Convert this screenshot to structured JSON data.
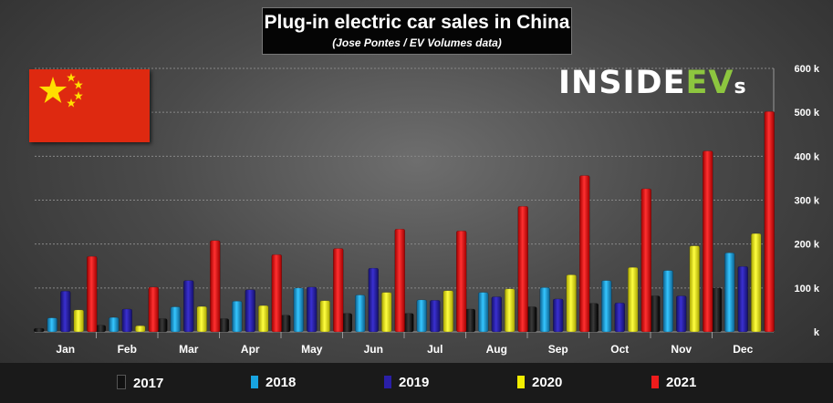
{
  "title": "Plug-in electric car sales in China",
  "subtitle": "(Jose Pontes / EV Volumes data)",
  "logo": {
    "main": "INSIDE",
    "ev": "EV",
    "s": "s"
  },
  "colors": {
    "2017": "#0a0a0a",
    "2018": "#18a4e0",
    "2019": "#2a1fa8",
    "2020": "#f2ee00",
    "2021": "#ee1c1c"
  },
  "chart_data": {
    "type": "bar",
    "title": "Plug-in electric car sales in China",
    "subtitle": "(Jose Pontes / EV Volumes data)",
    "xlabel": "",
    "ylabel": "",
    "ylim": [
      0,
      600000
    ],
    "yticks": [
      0,
      100000,
      200000,
      300000,
      400000,
      500000,
      600000
    ],
    "ytick_labels": [
      "k",
      "100 k",
      "200 k",
      "300 k",
      "400 k",
      "500 k",
      "600 k"
    ],
    "legend_position": "bottom",
    "categories": [
      "Jan",
      "Feb",
      "Mar",
      "Apr",
      "May",
      "Jun",
      "Jul",
      "Aug",
      "Sep",
      "Oct",
      "Nov",
      "Dec"
    ],
    "series": [
      {
        "name": "2017",
        "values": [
          8000,
          15000,
          30000,
          30000,
          38000,
          42000,
          42000,
          52000,
          57000,
          65000,
          82000,
          100000
        ]
      },
      {
        "name": "2018",
        "values": [
          32000,
          33000,
          57000,
          70000,
          100000,
          84000,
          73000,
          90000,
          101000,
          117000,
          140000,
          180000
        ]
      },
      {
        "name": "2019",
        "values": [
          93000,
          52000,
          117000,
          96000,
          102000,
          145000,
          72000,
          80000,
          75000,
          66000,
          82000,
          149000
        ]
      },
      {
        "name": "2020",
        "values": [
          50000,
          14000,
          58000,
          60000,
          71000,
          90000,
          94000,
          98000,
          130000,
          147000,
          196000,
          224000
        ]
      },
      {
        "name": "2021",
        "values": [
          172000,
          102000,
          208000,
          176000,
          190000,
          234000,
          230000,
          286000,
          356000,
          326000,
          412000,
          502000
        ]
      }
    ]
  }
}
